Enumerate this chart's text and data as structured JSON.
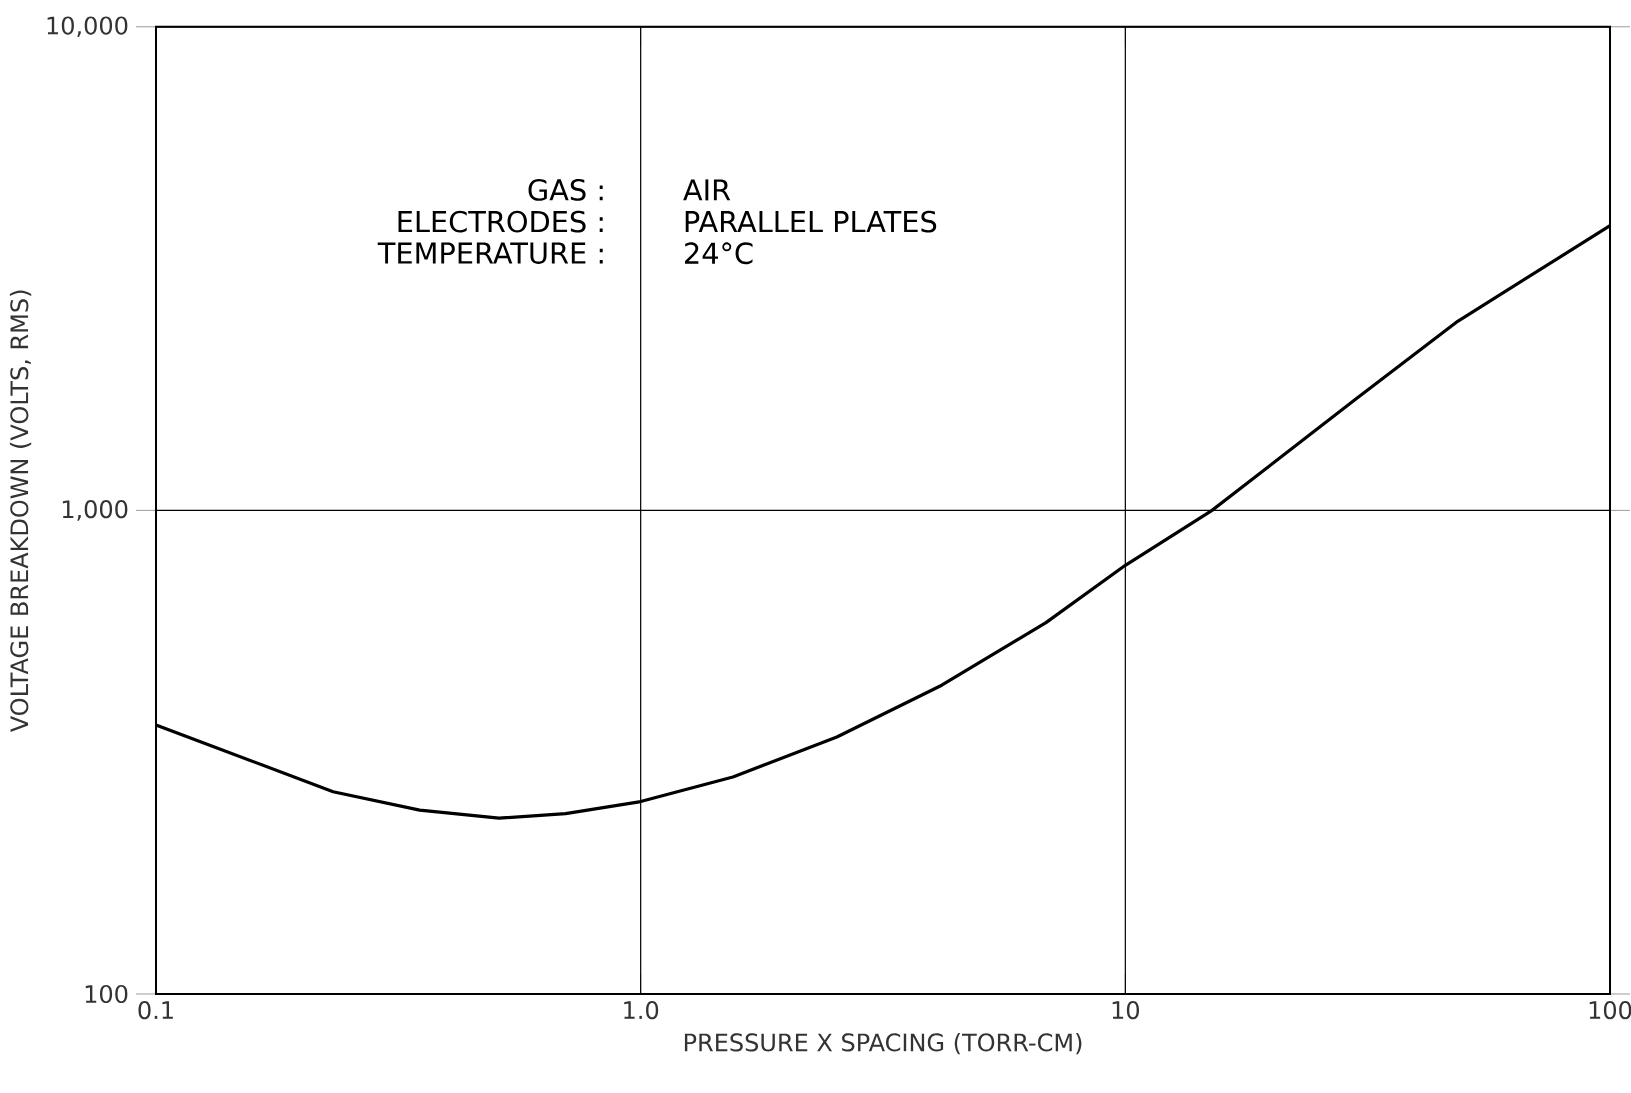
{
  "chart_data": {
    "type": "line",
    "xlabel": "PRESSURE X SPACING (TORR-CM)",
    "ylabel": "VOLTAGE BREAKDOWN (VOLTS, RMS)",
    "log": "xy",
    "grid": true,
    "marker": "none",
    "line_style": "solid",
    "xlim": [
      0.1,
      100
    ],
    "ylim": [
      100,
      10000
    ],
    "xticks": [
      0.1,
      {
        "value": 1,
        "label": "1.0"
      },
      10,
      100
    ],
    "yticks": [
      100,
      {
        "value": 1000,
        "label": "1,000"
      },
      {
        "value": 10000,
        "label": "10,000"
      }
    ],
    "annotations": [
      "GAS :",
      "AIR",
      "ELECTRODES :",
      "PARALLEL PLATES",
      "TEMPERATURE :",
      "24°C"
    ],
    "series": [
      {
        "color": "#000000",
        "x": [
          0.1,
          0.232,
          0.35,
          0.51,
          0.7,
          1.0,
          1.55,
          2.54,
          4.18,
          6.86,
          10,
          15.1,
          29.9,
          48.5,
          100
        ],
        "values": [
          360,
          262,
          240,
          231,
          236,
          250,
          281,
          340,
          435,
          586,
          770,
          1000,
          1700,
          2460,
          3880
        ]
      }
    ]
  }
}
